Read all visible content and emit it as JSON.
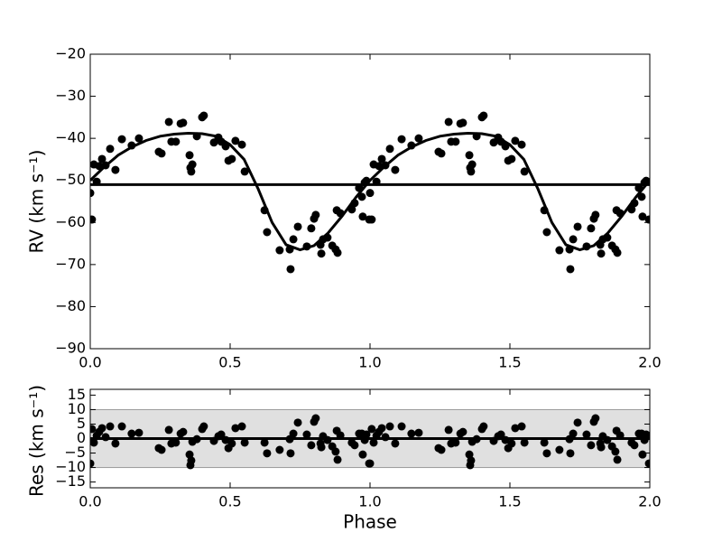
{
  "chart_data": [
    {
      "type": "scatter",
      "ylabel": "RV (km s⁻¹)",
      "xlim": [
        0,
        2
      ],
      "ylim": [
        -90,
        -20
      ],
      "xticks": [
        {
          "value": 0,
          "label": "0.0"
        },
        {
          "value": 0.5,
          "label": "0.5"
        },
        {
          "value": 1,
          "label": "1.0"
        },
        {
          "value": 1.5,
          "label": "1.5"
        },
        {
          "value": 2,
          "label": "2.0"
        }
      ],
      "yticks": [
        {
          "value": -90,
          "label": "−90"
        },
        {
          "value": -80,
          "label": "−80"
        },
        {
          "value": -70,
          "label": "−70"
        },
        {
          "value": -60,
          "label": "−60"
        },
        {
          "value": -50,
          "label": "−50"
        },
        {
          "value": -40,
          "label": "−40"
        },
        {
          "value": -30,
          "label": "−30"
        },
        {
          "value": -20,
          "label": "−20"
        }
      ],
      "series": [
        {
          "kind": "scatter",
          "color": "#000000",
          "x": [
            0,
            0.006,
            0.013,
            0.023,
            0.032,
            0.042,
            0.055,
            0.071,
            0.09,
            0.113,
            0.148,
            0.174,
            0.245,
            0.255,
            0.281,
            0.29,
            0.306,
            0.323,
            0.332,
            0.355,
            0.358,
            0.361,
            0.365,
            0.381,
            0.4,
            0.406,
            0.442,
            0.458,
            0.468,
            0.484,
            0.494,
            0.506,
            0.519,
            0.542,
            0.552,
            0.623,
            0.632,
            0.677,
            0.713,
            0.716,
            0.726,
            0.742,
            0.774,
            0.79,
            0.8,
            0.806,
            0.823,
            0.826,
            0.832,
            0.848,
            0.865,
            0.877,
            0.884,
            0.881,
            0.894,
            0.935,
            0.945,
            0.961,
            0.971,
            0.974,
            0.981,
            0.987,
            0.997,
            1,
            1.006,
            1.013,
            1.023,
            1.032,
            1.042,
            1.055,
            1.071,
            1.09,
            1.113,
            1.148,
            1.174,
            1.245,
            1.255,
            1.281,
            1.29,
            1.306,
            1.323,
            1.332,
            1.355,
            1.358,
            1.361,
            1.365,
            1.381,
            1.4,
            1.406,
            1.442,
            1.458,
            1.468,
            1.484,
            1.494,
            1.506,
            1.519,
            1.542,
            1.552,
            1.623,
            1.632,
            1.677,
            1.713,
            1.716,
            1.726,
            1.742,
            1.774,
            1.79,
            1.8,
            1.806,
            1.823,
            1.826,
            1.832,
            1.848,
            1.865,
            1.877,
            1.884,
            1.881,
            1.894,
            1.935,
            1.945,
            1.961,
            1.971,
            1.974,
            1.981,
            1.987,
            1.997
          ],
          "values": [
            -53,
            -59.3,
            -46.2,
            -50.3,
            -46.6,
            -44.9,
            -46.4,
            -42.5,
            -47.5,
            -40.2,
            -41.7,
            -40,
            -43.2,
            -43.6,
            -36.1,
            -40.8,
            -40.8,
            -36.5,
            -36.3,
            -44,
            -47,
            -47.9,
            -46.2,
            -39.5,
            -35,
            -34.6,
            -41,
            -39.8,
            -40.8,
            -41.9,
            -45.3,
            -44.9,
            -40.6,
            -41.5,
            -47.9,
            -57.1,
            -62.3,
            -66.6,
            -66.4,
            -71.1,
            -64,
            -61,
            -65.7,
            -61.4,
            -59.1,
            -58.2,
            -65.3,
            -67.4,
            -64,
            -63.6,
            -65.5,
            -66.4,
            -67.2,
            -57.1,
            -57.8,
            -56.9,
            -55.4,
            -51.8,
            -53.9,
            -58.6,
            -50.5,
            -50.1,
            -59.3,
            -53,
            -59.3,
            -46.2,
            -50.3,
            -46.6,
            -44.9,
            -46.4,
            -42.5,
            -47.5,
            -40.2,
            -41.7,
            -40,
            -43.2,
            -43.6,
            -36.1,
            -40.8,
            -40.8,
            -36.5,
            -36.3,
            -44,
            -47,
            -47.9,
            -46.2,
            -39.5,
            -35,
            -34.6,
            -41,
            -39.8,
            -40.8,
            -41.9,
            -45.3,
            -44.9,
            -40.6,
            -41.5,
            -47.9,
            -57.1,
            -62.3,
            -66.6,
            -66.4,
            -71.1,
            -64,
            -61,
            -65.7,
            -61.4,
            -59.1,
            -58.2,
            -65.3,
            -67.4,
            -64,
            -63.6,
            -65.5,
            -66.4,
            -67.2,
            -57.1,
            -57.8,
            -56.9,
            -55.4,
            -51.8,
            -53.9,
            -58.6,
            -50.5,
            -50.1,
            -59.3
          ]
        },
        {
          "kind": "line",
          "color": "#000000",
          "x": [
            0,
            0.05,
            0.1,
            0.15,
            0.2,
            0.25,
            0.3,
            0.35,
            0.4,
            0.45,
            0.5,
            0.55,
            0.6,
            0.65,
            0.7,
            0.75,
            0.8,
            0.85,
            0.9,
            0.95,
            1,
            1.05,
            1.1,
            1.15,
            1.2,
            1.25,
            1.3,
            1.35,
            1.4,
            1.45,
            1.5,
            1.55,
            1.6,
            1.65,
            1.7,
            1.75,
            1.8,
            1.85,
            1.9,
            1.95,
            2
          ],
          "values": [
            -50,
            -46.8,
            -44,
            -42,
            -40.5,
            -39.5,
            -39,
            -38.8,
            -38.9,
            -39.5,
            -41.5,
            -45,
            -52,
            -60,
            -65.3,
            -66.5,
            -65.5,
            -62.5,
            -58.5,
            -54,
            -50,
            -46.8,
            -44,
            -42,
            -40.5,
            -39.5,
            -39,
            -38.8,
            -38.9,
            -39.5,
            -41.5,
            -45,
            -52,
            -60,
            -65.3,
            -66.5,
            -65.5,
            -62.5,
            -58.5,
            -54,
            -50
          ]
        },
        {
          "kind": "line",
          "color": "#000000",
          "x": [
            0,
            2
          ],
          "values": [
            -51,
            -51
          ]
        }
      ]
    },
    {
      "type": "scatter",
      "xlabel": "Phase",
      "ylabel": "Res (km s⁻¹)",
      "xlim": [
        0,
        2
      ],
      "ylim": [
        -17,
        17
      ],
      "shaded_range": [
        -10,
        10
      ],
      "shaded_color": "#e0e0e0",
      "xticks": [
        {
          "value": 0,
          "label": "0.0"
        },
        {
          "value": 0.5,
          "label": "0.5"
        },
        {
          "value": 1,
          "label": "1.0"
        },
        {
          "value": 1.5,
          "label": "1.5"
        },
        {
          "value": 2,
          "label": "2.0"
        }
      ],
      "yticks": [
        {
          "value": -15,
          "label": "−15"
        },
        {
          "value": -10,
          "label": "−10"
        },
        {
          "value": -5,
          "label": "−5"
        },
        0,
        5,
        10,
        15
      ],
      "series": [
        {
          "kind": "scatter",
          "color": "#000000",
          "x": [
            0,
            0.006,
            0.013,
            0.023,
            0.032,
            0.042,
            0.055,
            0.071,
            0.09,
            0.113,
            0.148,
            0.174,
            0.245,
            0.255,
            0.281,
            0.29,
            0.306,
            0.323,
            0.332,
            0.355,
            0.358,
            0.361,
            0.365,
            0.381,
            0.4,
            0.406,
            0.442,
            0.458,
            0.468,
            0.484,
            0.494,
            0.506,
            0.519,
            0.542,
            0.552,
            0.623,
            0.632,
            0.677,
            0.713,
            0.716,
            0.726,
            0.742,
            0.774,
            0.79,
            0.8,
            0.806,
            0.823,
            0.826,
            0.832,
            0.848,
            0.865,
            0.877,
            0.884,
            0.881,
            0.894,
            0.935,
            0.945,
            0.961,
            0.971,
            0.974,
            0.981,
            0.987,
            0.997,
            1,
            1.006,
            1.013,
            1.023,
            1.032,
            1.042,
            1.055,
            1.071,
            1.09,
            1.113,
            1.148,
            1.174,
            1.245,
            1.255,
            1.281,
            1.29,
            1.306,
            1.323,
            1.332,
            1.355,
            1.358,
            1.361,
            1.365,
            1.381,
            1.4,
            1.406,
            1.442,
            1.458,
            1.468,
            1.484,
            1.494,
            1.506,
            1.519,
            1.542,
            1.552,
            1.623,
            1.632,
            1.677,
            1.713,
            1.716,
            1.726,
            1.742,
            1.774,
            1.79,
            1.8,
            1.806,
            1.823,
            1.826,
            1.832,
            1.848,
            1.865,
            1.877,
            1.884,
            1.881,
            1.894,
            1.935,
            1.945,
            1.961,
            1.971,
            1.974,
            1.981,
            1.987,
            1.997
          ],
          "values": [
            -8.6,
            3.3,
            -1.4,
            1.0,
            2.3,
            3.6,
            0.5,
            4.2,
            -1.7,
            4.2,
            1.7,
            2,
            -3.3,
            -3.9,
            3,
            -1.7,
            -1.4,
            1.7,
            2.3,
            -5.5,
            -9.2,
            -7.6,
            -1.1,
            -0.2,
            3.3,
            4.2,
            -0.8,
            0.8,
            1.4,
            -0.5,
            -3.3,
            -1.7,
            3.6,
            4.2,
            -1.4,
            -1.4,
            -5.1,
            -3.9,
            -0.2,
            -5.1,
            1.7,
            5.5,
            1.4,
            -2.3,
            5.8,
            7,
            -1.7,
            -3,
            0.8,
            -0.5,
            -2.7,
            -4.5,
            -7.3,
            2.7,
            1.1,
            -1.4,
            -2.3,
            1.7,
            1.7,
            -5.5,
            -0.5,
            1.4,
            -8.6,
            -8.6,
            3.3,
            -1.4,
            1.0,
            2.3,
            3.6,
            0.5,
            4.2,
            -1.7,
            4.2,
            1.7,
            2,
            -3.3,
            -3.9,
            3,
            -1.7,
            -1.4,
            1.7,
            2.3,
            -5.5,
            -9.2,
            -7.6,
            -1.1,
            -0.2,
            3.3,
            4.2,
            -0.8,
            0.8,
            1.4,
            -0.5,
            -3.3,
            -1.7,
            3.6,
            4.2,
            -1.4,
            -1.4,
            -5.1,
            -3.9,
            -0.2,
            -5.1,
            1.7,
            5.5,
            1.4,
            -2.3,
            5.8,
            7,
            -1.7,
            -3,
            0.8,
            -0.5,
            -2.7,
            -4.5,
            -7.3,
            2.7,
            1.1,
            -1.4,
            -2.3,
            1.7,
            1.7,
            -5.5,
            -0.5,
            1.4,
            -8.6
          ]
        },
        {
          "kind": "line",
          "color": "#000000",
          "x": [
            0,
            2
          ],
          "values": [
            0,
            0
          ]
        }
      ]
    }
  ]
}
